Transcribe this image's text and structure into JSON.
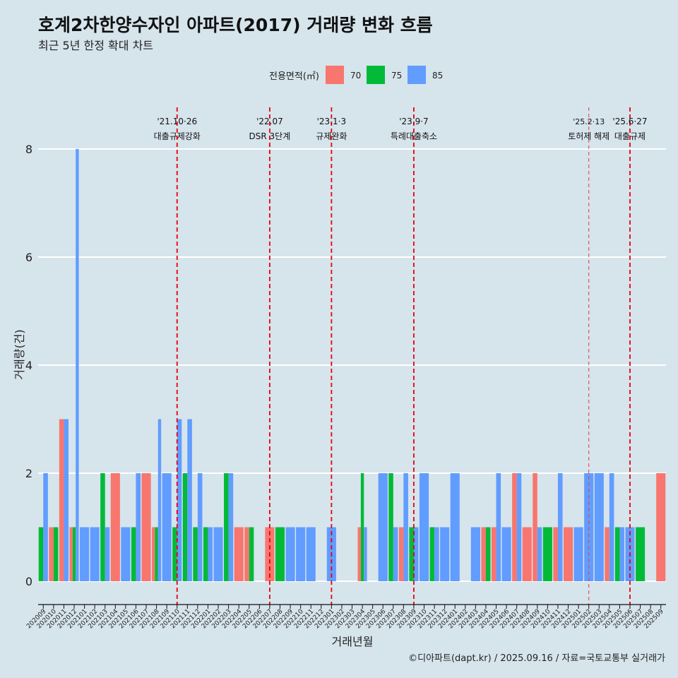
{
  "header": {
    "title": "호계2차한양수자인 아파트(2017) 거래량 변화 흐름",
    "subtitle": "최근 5년 한정 확대 차트"
  },
  "legend": {
    "title": "전용면적(㎡)",
    "items": [
      {
        "label": "70",
        "color": "#f8766d"
      },
      {
        "label": "75",
        "color": "#00ba38"
      },
      {
        "label": "85",
        "color": "#619cff"
      }
    ]
  },
  "caption": "©디아파트(dapt.kr) / 2025.09.16 / 자료=국토교통부 실거래가",
  "chart_data": {
    "type": "bar",
    "stacking": "dodge",
    "xlabel": "거래년월",
    "ylabel": "거래량(건)",
    "ylim": [
      0,
      8
    ],
    "yticks": [
      0,
      2,
      4,
      6,
      8
    ],
    "grid": true,
    "legend_position": "top",
    "categories": [
      "202009",
      "202010",
      "202011",
      "202012",
      "202101",
      "202102",
      "202103",
      "202104",
      "202105",
      "202106",
      "202107",
      "202108",
      "202109",
      "202110",
      "202111",
      "202112",
      "202201",
      "202202",
      "202203",
      "202204",
      "202205",
      "202206",
      "202207",
      "202208",
      "202209",
      "202210",
      "202211",
      "202212",
      "202301",
      "202302",
      "202303",
      "202304",
      "202305",
      "202306",
      "202307",
      "202308",
      "202309",
      "202310",
      "202311",
      "202312",
      "202401",
      "202402",
      "202403",
      "202404",
      "202405",
      "202406",
      "202407",
      "202408",
      "202409",
      "202410",
      "202411",
      "202412",
      "202501",
      "202502",
      "202503",
      "202504",
      "202505",
      "202506",
      "202507",
      "202508",
      "202509"
    ],
    "series": [
      {
        "name": "70",
        "color": "#f8766d",
        "values": [
          0,
          1,
          3,
          1,
          0,
          0,
          0,
          2,
          0,
          0,
          2,
          1,
          0,
          0,
          0,
          0,
          0,
          0,
          0,
          1,
          1,
          0,
          1,
          0,
          0,
          0,
          0,
          0,
          0,
          0,
          0,
          1,
          0,
          0,
          0,
          1,
          0,
          0,
          0,
          0,
          0,
          0,
          0,
          1,
          1,
          0,
          2,
          1,
          2,
          0,
          1,
          1,
          0,
          0,
          0,
          1,
          0,
          0,
          0,
          0,
          2
        ]
      },
      {
        "name": "75",
        "color": "#00ba38",
        "values": [
          1,
          1,
          0,
          1,
          0,
          0,
          2,
          0,
          0,
          1,
          0,
          1,
          0,
          1,
          2,
          1,
          1,
          0,
          2,
          0,
          1,
          0,
          0,
          1,
          0,
          0,
          0,
          0,
          0,
          0,
          0,
          2,
          0,
          0,
          2,
          0,
          1,
          0,
          1,
          0,
          0,
          0,
          0,
          1,
          0,
          0,
          0,
          0,
          0,
          1,
          0,
          0,
          0,
          0,
          0,
          0,
          1,
          0,
          1,
          0,
          0
        ]
      },
      {
        "name": "85",
        "color": "#619cff",
        "values": [
          2,
          0,
          3,
          8,
          1,
          1,
          1,
          0,
          1,
          2,
          0,
          3,
          2,
          3,
          3,
          2,
          1,
          1,
          2,
          0,
          0,
          0,
          0,
          0,
          1,
          1,
          1,
          0,
          1,
          0,
          0,
          1,
          0,
          2,
          1,
          2,
          1,
          2,
          1,
          1,
          2,
          0,
          1,
          0,
          2,
          1,
          2,
          0,
          1,
          0,
          2,
          0,
          1,
          2,
          2,
          2,
          1,
          1,
          0,
          0,
          0
        ]
      }
    ],
    "annotations": [
      {
        "x": "202110",
        "label_top": "'21.10·26",
        "label_bottom": "대출규제강화",
        "style": "dashed"
      },
      {
        "x": "202207",
        "label_top": "'22.07",
        "label_bottom": "DSR 3단계",
        "style": "dashed"
      },
      {
        "x": "202301",
        "label_top": "'23.1·3",
        "label_bottom": "규제완화",
        "style": "dashed"
      },
      {
        "x": "202309",
        "label_top": "'23.9·7",
        "label_bottom": "특례대출축소",
        "style": "dashed"
      },
      {
        "x": "202502",
        "label_top": "'25.2·13",
        "label_bottom": "토허제 해제",
        "style": "thin-dashed"
      },
      {
        "x": "202506",
        "label_top": "'25.6·27",
        "label_bottom": "대출규제",
        "style": "dashed"
      }
    ]
  }
}
